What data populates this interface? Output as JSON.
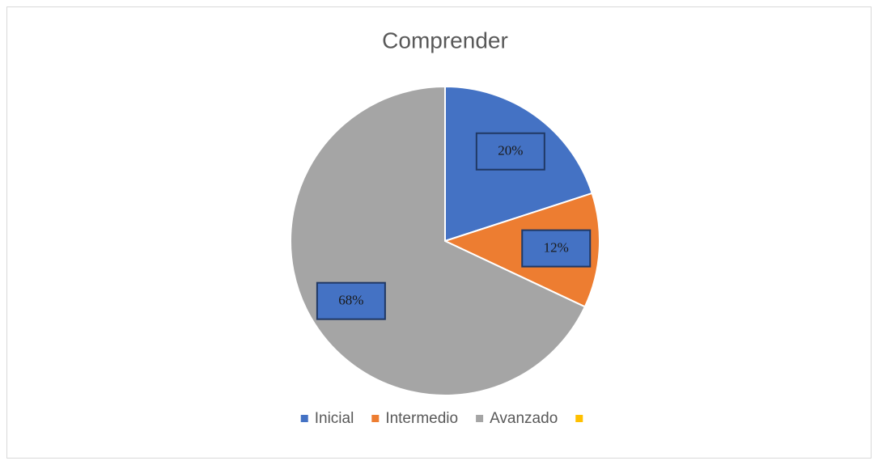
{
  "chart_data": {
    "type": "pie",
    "title": "Comprender",
    "categories": [
      "Inicial",
      "Intermedio",
      "Avanzado",
      null
    ],
    "values": [
      20,
      12,
      68,
      0
    ],
    "value_labels": [
      "20%",
      "12%",
      "68%",
      null
    ],
    "colors": [
      "#4472c4",
      "#ed7d31",
      "#a5a5a5",
      "#ffc000"
    ],
    "legend": "bottom"
  }
}
